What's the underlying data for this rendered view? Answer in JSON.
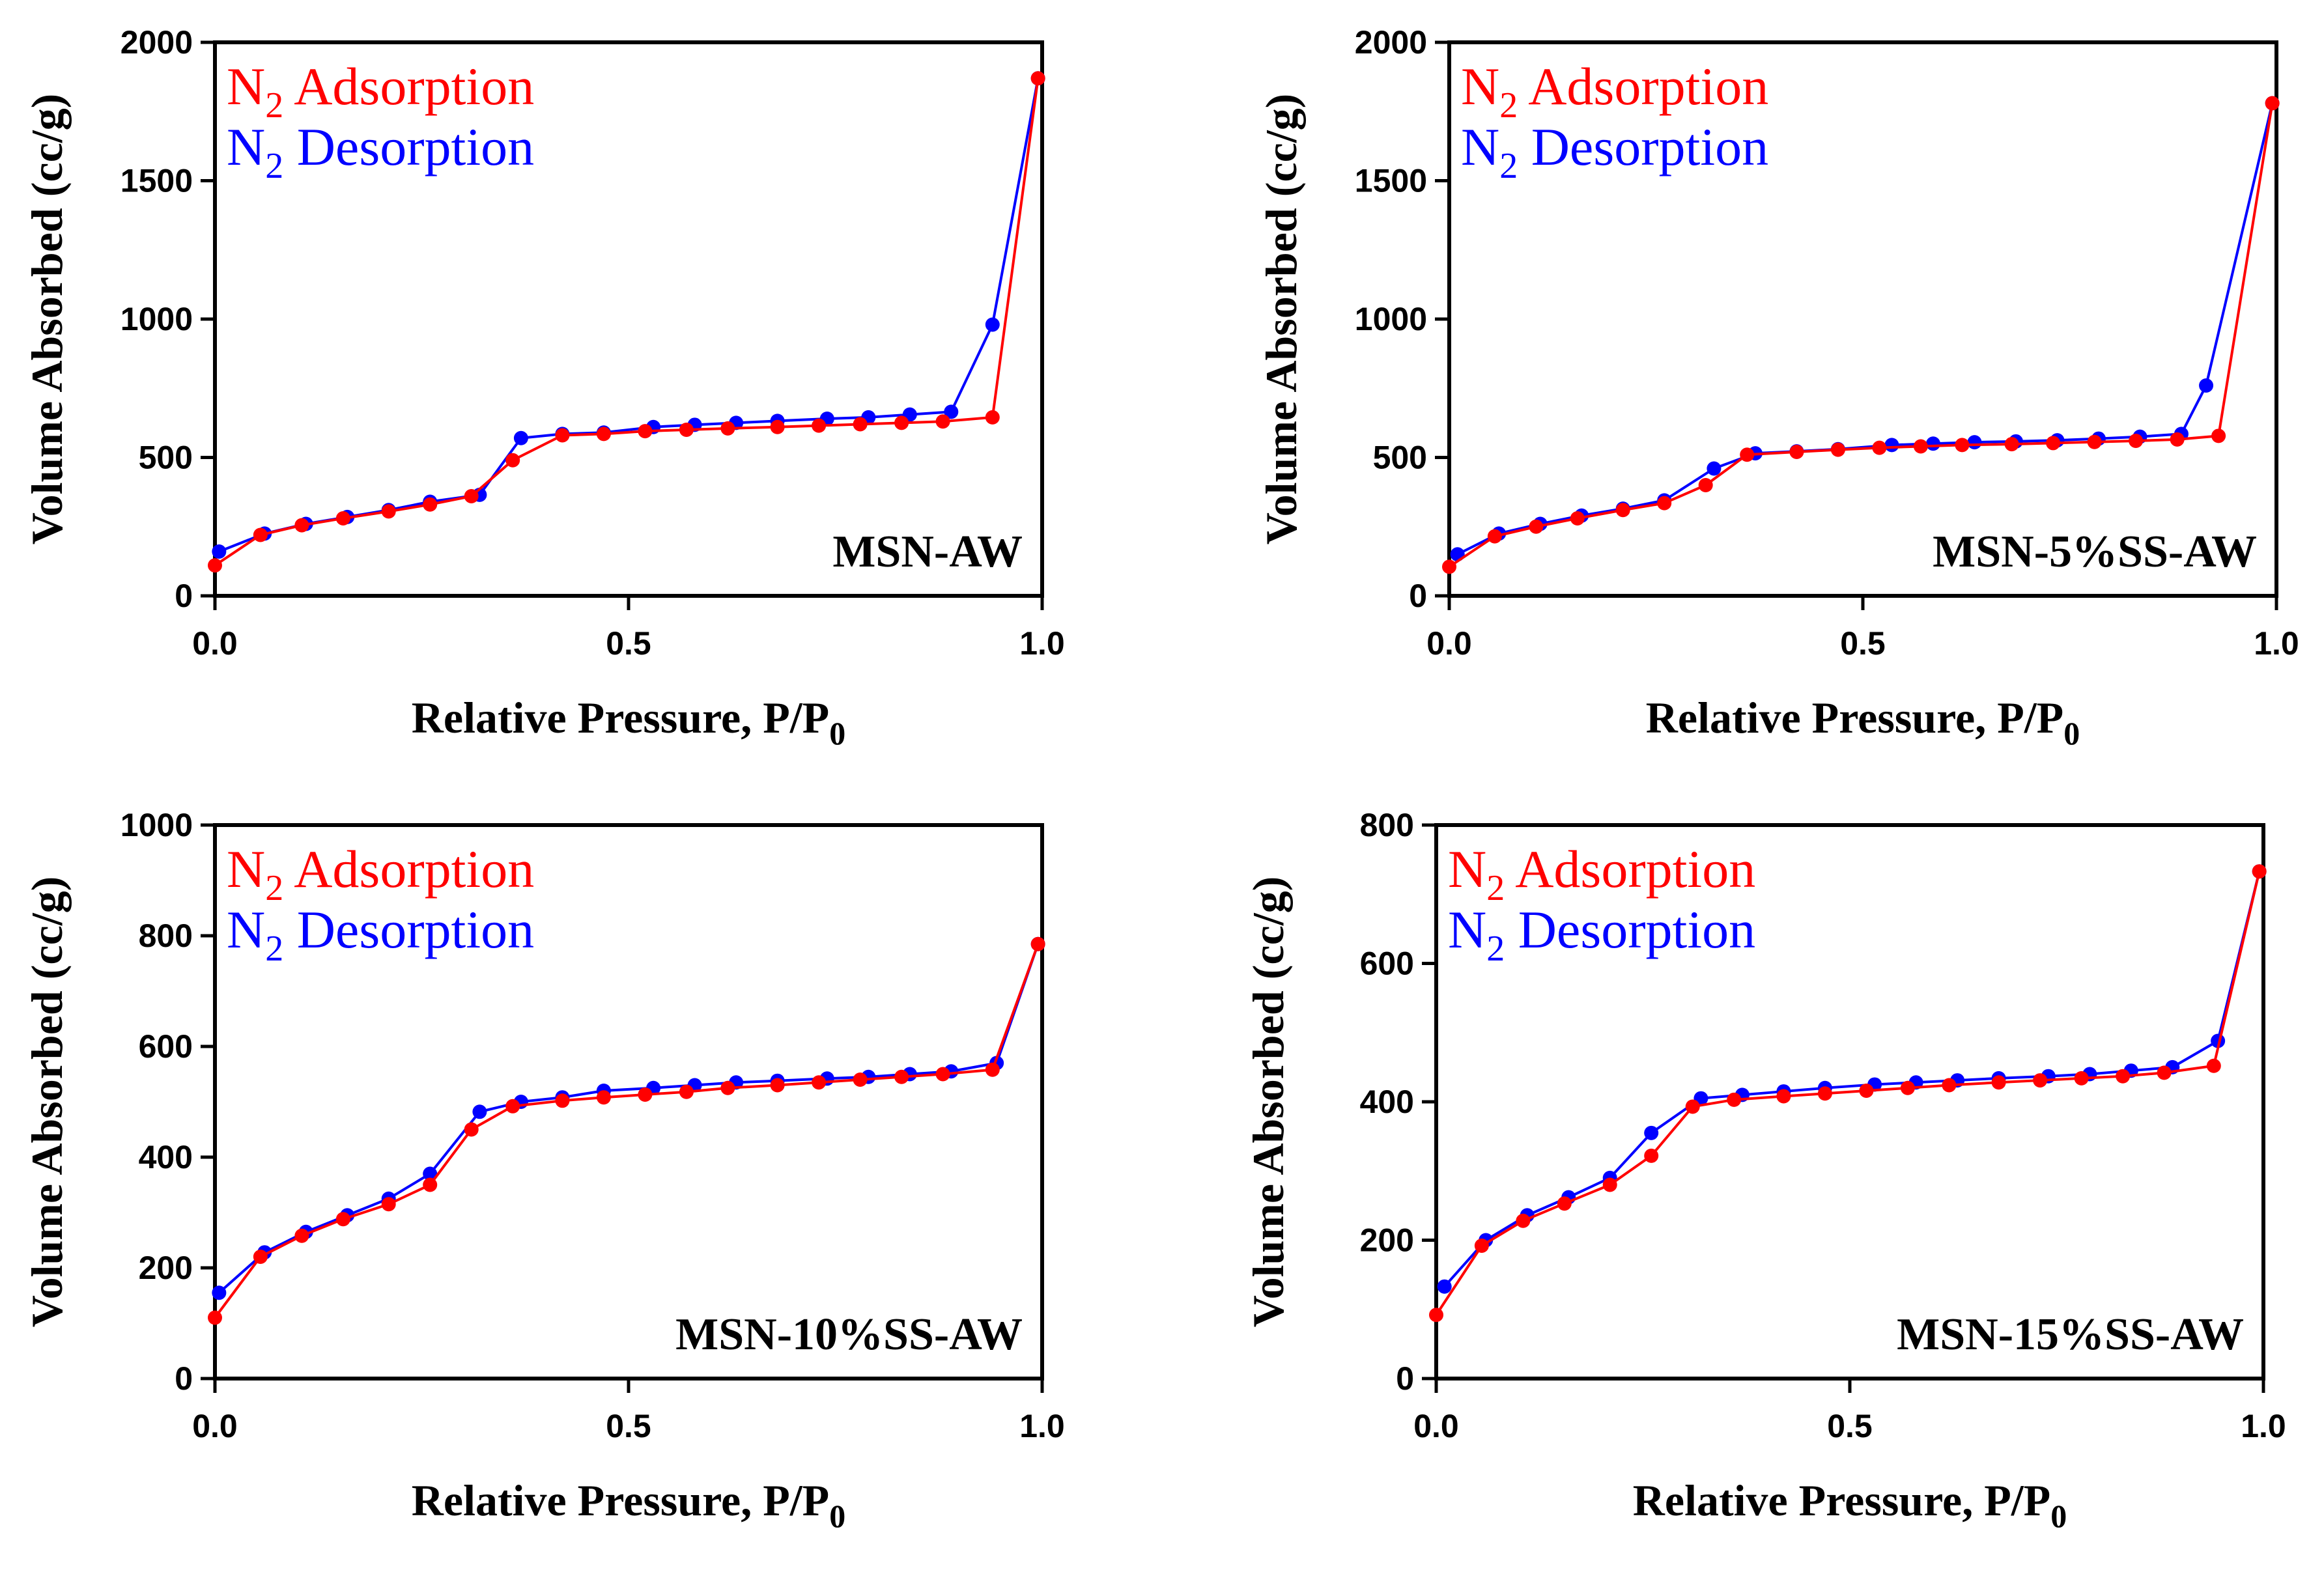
{
  "figure": {
    "xlabel": "Relative Pressure, P/P",
    "xlabel_sub": "0",
    "ylabel": "Volume Absorbed (cc/g)",
    "legend": {
      "adsorption": "Adsorption",
      "desorption": "Desorption",
      "species": "N",
      "species_sub": "2"
    },
    "colors": {
      "adsorption": "#ff0000",
      "desorption": "#0000ff",
      "axis": "#000000"
    }
  },
  "chart_data": [
    {
      "type": "line",
      "title": "MSN-AW",
      "xlabel": "Relative Pressure, P/P0",
      "ylabel": "Volume Absorbed (cc/g)",
      "xlim": [
        0,
        1.0
      ],
      "ylim": [
        0,
        2000
      ],
      "xticks": [
        "0.0",
        "0.5",
        "1.0"
      ],
      "yticks": [
        "0",
        "500",
        "1000",
        "1500",
        "2000"
      ],
      "series": [
        {
          "name": "N2 Adsorption",
          "color": "#ff0000",
          "x": [
            0.0,
            0.055,
            0.105,
            0.155,
            0.21,
            0.26,
            0.31,
            0.36,
            0.42,
            0.47,
            0.52,
            0.57,
            0.62,
            0.68,
            0.73,
            0.78,
            0.83,
            0.88,
            0.94,
            0.995
          ],
          "y": [
            110,
            220,
            255,
            280,
            305,
            330,
            360,
            490,
            580,
            585,
            595,
            600,
            605,
            610,
            615,
            620,
            625,
            630,
            645,
            1870
          ]
        },
        {
          "name": "N2 Desorption",
          "color": "#0000ff",
          "x": [
            0.995,
            0.94,
            0.89,
            0.84,
            0.79,
            0.74,
            0.68,
            0.63,
            0.58,
            0.53,
            0.47,
            0.42,
            0.37,
            0.32,
            0.26,
            0.21,
            0.16,
            0.11,
            0.06,
            0.005
          ],
          "y": [
            1870,
            980,
            665,
            655,
            645,
            640,
            632,
            625,
            618,
            610,
            590,
            585,
            570,
            365,
            340,
            310,
            285,
            260,
            225,
            160
          ]
        }
      ]
    },
    {
      "type": "line",
      "title": "MSN-5%SS-AW",
      "xlabel": "Relative Pressure, P/P0",
      "ylabel": "Volume Absorbed (cc/g)",
      "xlim": [
        0,
        1.0
      ],
      "ylim": [
        0,
        2000
      ],
      "xticks": [
        "0.0",
        "0.5",
        "1.0"
      ],
      "yticks": [
        "0",
        "500",
        "1000",
        "1500",
        "2000"
      ],
      "series": [
        {
          "name": "N2 Adsorption",
          "color": "#ff0000",
          "x": [
            0.0,
            0.055,
            0.105,
            0.155,
            0.21,
            0.26,
            0.31,
            0.36,
            0.42,
            0.47,
            0.52,
            0.57,
            0.62,
            0.68,
            0.73,
            0.78,
            0.83,
            0.88,
            0.93,
            0.995
          ],
          "y": [
            105,
            215,
            250,
            280,
            310,
            335,
            400,
            510,
            520,
            528,
            535,
            540,
            545,
            548,
            552,
            556,
            560,
            565,
            578,
            1780
          ]
        },
        {
          "name": "N2 Desorption",
          "color": "#0000ff",
          "x": [
            0.995,
            0.915,
            0.885,
            0.835,
            0.785,
            0.735,
            0.685,
            0.635,
            0.585,
            0.535,
            0.47,
            0.42,
            0.37,
            0.32,
            0.26,
            0.21,
            0.16,
            0.11,
            0.06,
            0.01
          ],
          "y": [
            1780,
            760,
            585,
            575,
            568,
            562,
            558,
            555,
            550,
            545,
            530,
            522,
            515,
            460,
            345,
            315,
            290,
            260,
            225,
            150
          ]
        }
      ]
    },
    {
      "type": "line",
      "title": "MSN-10%SS-AW",
      "xlabel": "Relative Pressure, P/P0",
      "ylabel": "Volume Absorbed (cc/g)",
      "xlim": [
        0,
        1.0
      ],
      "ylim": [
        0,
        1000
      ],
      "xticks": [
        "0.0",
        "0.5",
        "1.0"
      ],
      "yticks": [
        "0",
        "200",
        "400",
        "600",
        "800",
        "1000"
      ],
      "series": [
        {
          "name": "N2 Adsorption",
          "color": "#ff0000",
          "x": [
            0.0,
            0.055,
            0.105,
            0.155,
            0.21,
            0.26,
            0.31,
            0.36,
            0.42,
            0.47,
            0.52,
            0.57,
            0.62,
            0.68,
            0.73,
            0.78,
            0.83,
            0.88,
            0.94,
            0.995
          ],
          "y": [
            110,
            220,
            258,
            288,
            315,
            350,
            450,
            492,
            502,
            508,
            513,
            518,
            525,
            530,
            535,
            540,
            545,
            550,
            558,
            785
          ]
        },
        {
          "name": "N2 Desorption",
          "color": "#0000ff",
          "x": [
            0.995,
            0.945,
            0.89,
            0.84,
            0.79,
            0.74,
            0.68,
            0.63,
            0.58,
            0.53,
            0.47,
            0.42,
            0.37,
            0.32,
            0.26,
            0.21,
            0.16,
            0.11,
            0.06,
            0.005
          ],
          "y": [
            785,
            570,
            555,
            550,
            545,
            542,
            538,
            535,
            530,
            525,
            520,
            508,
            500,
            482,
            370,
            325,
            295,
            265,
            228,
            155
          ]
        }
      ]
    },
    {
      "type": "line",
      "title": "MSN-15%SS-AW",
      "xlabel": "Relative Pressure, P/P0",
      "ylabel": "Volume Absorbed (cc/g)",
      "xlim": [
        0,
        1.0
      ],
      "ylim": [
        0,
        800
      ],
      "xticks": [
        "0.0",
        "0.5",
        "1.0"
      ],
      "yticks": [
        "0",
        "200",
        "400",
        "600",
        "800"
      ],
      "series": [
        {
          "name": "N2 Adsorption",
          "color": "#ff0000",
          "x": [
            0.0,
            0.055,
            0.105,
            0.155,
            0.21,
            0.26,
            0.31,
            0.36,
            0.42,
            0.47,
            0.52,
            0.57,
            0.62,
            0.68,
            0.73,
            0.78,
            0.83,
            0.88,
            0.94,
            0.995
          ],
          "y": [
            92,
            192,
            228,
            253,
            280,
            322,
            393,
            403,
            408,
            412,
            416,
            420,
            424,
            428,
            431,
            434,
            437,
            442,
            452,
            733
          ]
        },
        {
          "name": "N2 Desorption",
          "color": "#0000ff",
          "x": [
            0.995,
            0.945,
            0.89,
            0.84,
            0.79,
            0.74,
            0.68,
            0.63,
            0.58,
            0.53,
            0.47,
            0.42,
            0.37,
            0.32,
            0.26,
            0.21,
            0.16,
            0.11,
            0.06,
            0.01
          ],
          "y": [
            733,
            488,
            450,
            445,
            440,
            437,
            434,
            431,
            428,
            425,
            420,
            415,
            410,
            405,
            355,
            290,
            262,
            236,
            200,
            133
          ]
        }
      ]
    }
  ]
}
